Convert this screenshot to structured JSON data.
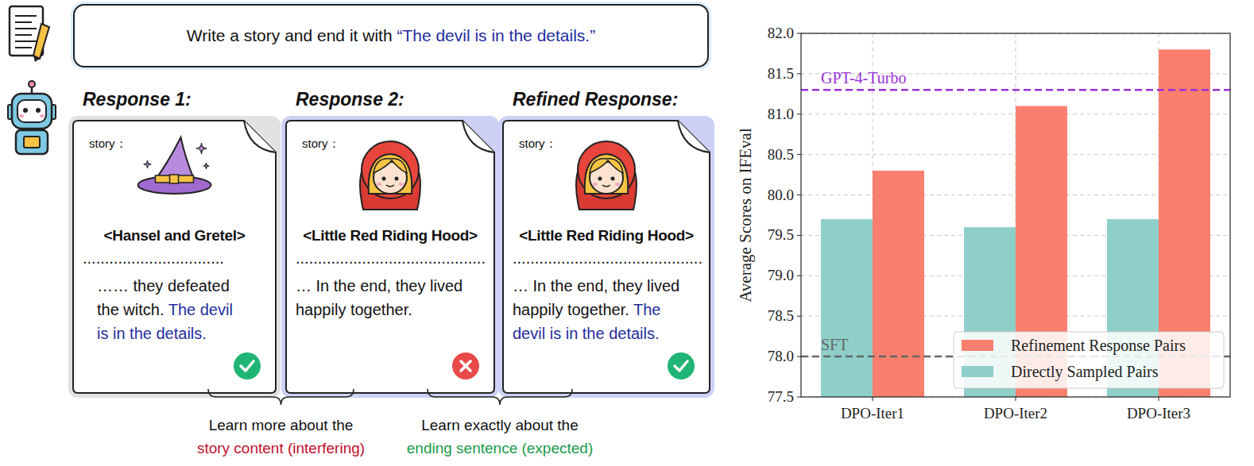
{
  "diagram": {
    "prompt": {
      "text": "Write a story and end it with ",
      "quote": "“The devil is in the details.”"
    },
    "responses": [
      {
        "label": "Response 1:",
        "story_label": "story：",
        "title": "<Hansel and Gretel>",
        "dots": "................................",
        "text": "…… they defeated the witch. ",
        "ending": "The devil is in the details.",
        "correct": true
      },
      {
        "label": "Response 2:",
        "story_label": "story：",
        "title": "<Little Red Riding Hood>",
        "dots": "...........................................",
        "text": "… In the end, they lived happily together.",
        "correct": false
      },
      {
        "label": "Refined Response:",
        "story_label": "story：",
        "title": "<Little Red Riding Hood>",
        "dots": "...........................................",
        "text": "… In the end, they lived happily together. ",
        "ending": "The devil is in the details.",
        "correct": true
      }
    ],
    "braces": [
      {
        "lines": [
          "Learn more about the",
          "story content (interfering)"
        ],
        "color": "#c0102c"
      },
      {
        "lines": [
          "Learn exactly about the",
          "ending sentence (expected)"
        ],
        "color": "#1a9a4a"
      }
    ]
  },
  "chart_data": {
    "type": "bar",
    "y_label": "Average Scores on IFEval",
    "categories": [
      "DPO-Iter1",
      "DPO-Iter2",
      "DPO-Iter3"
    ],
    "series": [
      {
        "name": "Directly Sampled Pairs",
        "color": "#8ecfc9",
        "values": [
          79.7,
          79.6,
          79.7
        ]
      },
      {
        "name": "Refinement Response Pairs",
        "color": "#fa7f6f",
        "values": [
          80.3,
          81.1,
          81.8
        ]
      }
    ],
    "reference_lines": [
      {
        "name": "GPT-4-Turbo",
        "value": 81.3,
        "color": "#9b30d9"
      },
      {
        "name": "SFT",
        "value": 78.0,
        "color": "#666666"
      }
    ],
    "ylim": [
      77.5,
      82.0
    ],
    "yticks": [
      77.5,
      {
        "value": 78,
        "label": "78.0"
      },
      78.5,
      {
        "value": 79,
        "label": "79.0"
      },
      79.5,
      {
        "value": 80,
        "label": "80.0"
      },
      80.5,
      {
        "value": 81,
        "label": "81.0"
      },
      81.5,
      {
        "value": 82,
        "label": "82.0"
      }
    ],
    "grid": true,
    "legend": "lower right"
  }
}
